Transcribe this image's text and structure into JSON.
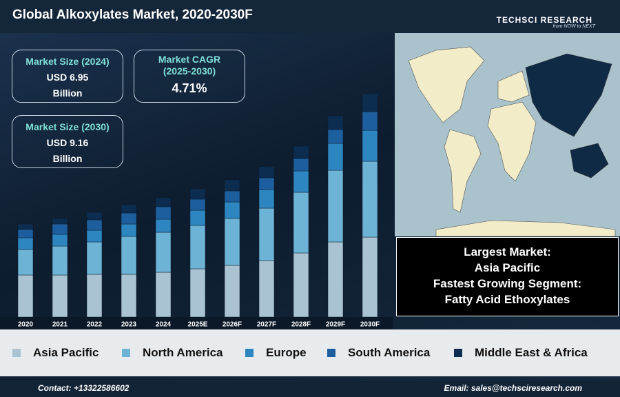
{
  "header": {
    "title": "Global Alkoxylates Market, 2020-2030F",
    "logo": "TECHSCI RESEARCH",
    "tagline": "from NOW to NEXT"
  },
  "kpis": [
    {
      "label": "Market Size (2024)",
      "value": "USD 6.95",
      "unit": "Billion"
    },
    {
      "label": "Market CAGR (2025-2030)",
      "value": "4.71%"
    },
    {
      "label": "Market Size (2030)",
      "value": "USD 9.16",
      "unit": "Billion"
    }
  ],
  "chart_data": {
    "type": "stacked-bar",
    "categories": [
      "2020",
      "2021",
      "2022",
      "2023",
      "2024",
      "2025E",
      "2026F",
      "2027F",
      "2028F",
      "2029F",
      "2030F"
    ],
    "ylim": [
      0,
      330
    ],
    "series": [
      {
        "name": "Asia Pacific",
        "color": "#a9c3d2",
        "values": [
          61,
          61,
          62,
          62,
          65,
          70,
          75,
          82,
          93,
          109,
          116
        ]
      },
      {
        "name": "North America",
        "color": "#6db3d6",
        "values": [
          37,
          42,
          47,
          55,
          58,
          63,
          68,
          76,
          88,
          104,
          110
        ]
      },
      {
        "name": "Europe",
        "color": "#2e86c1",
        "values": [
          17,
          17,
          17,
          18,
          19,
          22,
          24,
          27,
          31,
          39,
          45
        ]
      },
      {
        "name": "South America",
        "color": "#1d5f9e",
        "values": [
          12,
          15,
          15,
          16,
          18,
          16,
          16,
          17,
          18,
          20,
          27
        ]
      },
      {
        "name": "Middle East & Africa",
        "color": "#0c2d4f",
        "values": [
          8,
          8,
          11,
          12,
          13,
          15,
          16,
          16,
          18,
          20,
          26
        ]
      }
    ]
  },
  "highlights": [
    "Largest Market:",
    "Asia Pacific",
    "Fastest Growing Segment:",
    "Fatty Acid Ethoxylates"
  ],
  "footer": {
    "contact": "Contact: +13322586602",
    "email": "Email: sales@techsciresearch.com"
  }
}
